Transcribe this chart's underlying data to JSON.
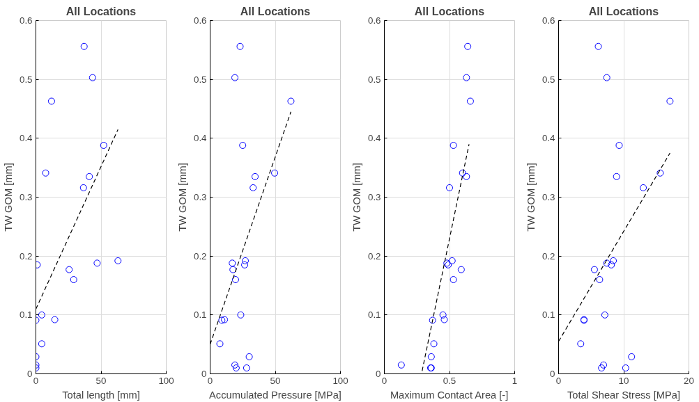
{
  "chart_data": [
    {
      "type": "scatter",
      "title": "All Locations",
      "xlabel": "Total length [mm]",
      "ylabel": "TW GOM [mm]",
      "xlim": [
        0,
        100
      ],
      "xticks": [
        0,
        50,
        100
      ],
      "ylim": [
        0,
        0.6
      ],
      "yticks": [
        0,
        0.1,
        0.2,
        0.3,
        0.4,
        0.5,
        0.6
      ],
      "grid": true,
      "series": [
        {
          "marker": "circle",
          "color": "#0000ff",
          "x": [
            37,
            43.5,
            12,
            52,
            7.5,
            41,
            36.5,
            1,
            25.5,
            29,
            47,
            63,
            4.5,
            0,
            14.5,
            4.5,
            0,
            0,
            0
          ],
          "values": [
            0.556,
            0.503,
            0.463,
            0.388,
            0.341,
            0.335,
            0.316,
            0.185,
            0.177,
            0.16,
            0.188,
            0.192,
            0.1,
            0.091,
            0.092,
            0.051,
            0.029,
            0.015,
            0.01
          ]
        },
        {
          "type": "line",
          "marker": "none",
          "color": "#000000",
          "line_style": "dashed",
          "x": [
            0,
            63
          ],
          "values": [
            0.11,
            0.415
          ]
        }
      ]
    },
    {
      "type": "scatter",
      "title": "All Locations",
      "xlabel": "Accumulated Pressure [MPa]",
      "ylabel": "TW GOM [mm]",
      "xlim": [
        0,
        100
      ],
      "xticks": [
        0,
        50,
        100
      ],
      "ylim": [
        0,
        0.6
      ],
      "yticks": [
        0,
        0.1,
        0.2,
        0.3,
        0.4,
        0.5,
        0.6
      ],
      "grid": true,
      "series": [
        {
          "marker": "circle",
          "color": "#0000ff",
          "x": [
            23,
            19,
            62,
            25,
            49.5,
            34.5,
            33,
            17,
            27,
            26.5,
            17.5,
            19.5,
            23.5,
            9,
            11,
            7.5,
            30,
            19,
            20,
            28
          ],
          "values": [
            0.556,
            0.503,
            0.463,
            0.388,
            0.341,
            0.335,
            0.316,
            0.188,
            0.192,
            0.185,
            0.177,
            0.16,
            0.1,
            0.091,
            0.092,
            0.051,
            0.029,
            0.015,
            0.01,
            0.01
          ]
        },
        {
          "type": "line",
          "marker": "none",
          "color": "#000000",
          "line_style": "dashed",
          "x": [
            0,
            62
          ],
          "values": [
            0.05,
            0.445
          ]
        }
      ]
    },
    {
      "type": "scatter",
      "title": "All Locations",
      "xlabel": "Maximum Contact Area [-]",
      "ylabel": "TW GOM [mm]",
      "xlim": [
        0,
        1
      ],
      "xticks": [
        0,
        0.5,
        1
      ],
      "ylim": [
        0,
        0.6
      ],
      "yticks": [
        0,
        0.1,
        0.2,
        0.3,
        0.4,
        0.5,
        0.6
      ],
      "grid": true,
      "series": [
        {
          "marker": "circle",
          "color": "#0000ff",
          "x": [
            0.64,
            0.63,
            0.66,
            0.53,
            0.6,
            0.63,
            0.5,
            0.52,
            0.48,
            0.49,
            0.59,
            0.53,
            0.45,
            0.46,
            0.37,
            0.38,
            0.36,
            0.13,
            0.36,
            0.355
          ],
          "values": [
            0.556,
            0.503,
            0.463,
            0.388,
            0.341,
            0.335,
            0.316,
            0.192,
            0.188,
            0.185,
            0.177,
            0.16,
            0.1,
            0.092,
            0.091,
            0.051,
            0.029,
            0.015,
            0.01,
            0.01
          ]
        },
        {
          "type": "line",
          "marker": "none",
          "color": "#000000",
          "line_style": "dashed",
          "x": [
            0.29,
            0.65
          ],
          "values": [
            0.005,
            0.39
          ]
        }
      ]
    },
    {
      "type": "scatter",
      "title": "All Locations",
      "xlabel": "Total Shear Stress [MPa]",
      "ylabel": "TW GOM [mm]",
      "xlim": [
        0,
        20
      ],
      "xticks": [
        0,
        10,
        20
      ],
      "ylim": [
        0,
        0.6
      ],
      "yticks": [
        0,
        0.1,
        0.2,
        0.3,
        0.4,
        0.5,
        0.6
      ],
      "grid": true,
      "series": [
        {
          "marker": "circle",
          "color": "#0000ff",
          "x": [
            6.1,
            7.4,
            17.1,
            9.3,
            15.6,
            8.9,
            13,
            7.4,
            8.4,
            8.1,
            5.5,
            6.3,
            7.1,
            3.9,
            3.9,
            3.4,
            11.2,
            6.9,
            6.6,
            10.3
          ],
          "values": [
            0.556,
            0.503,
            0.463,
            0.388,
            0.341,
            0.335,
            0.316,
            0.188,
            0.192,
            0.185,
            0.177,
            0.16,
            0.1,
            0.092,
            0.091,
            0.051,
            0.029,
            0.015,
            0.01,
            0.01
          ]
        },
        {
          "type": "line",
          "marker": "none",
          "color": "#000000",
          "line_style": "dashed",
          "x": [
            0,
            17.1
          ],
          "values": [
            0.055,
            0.375
          ]
        }
      ]
    }
  ]
}
